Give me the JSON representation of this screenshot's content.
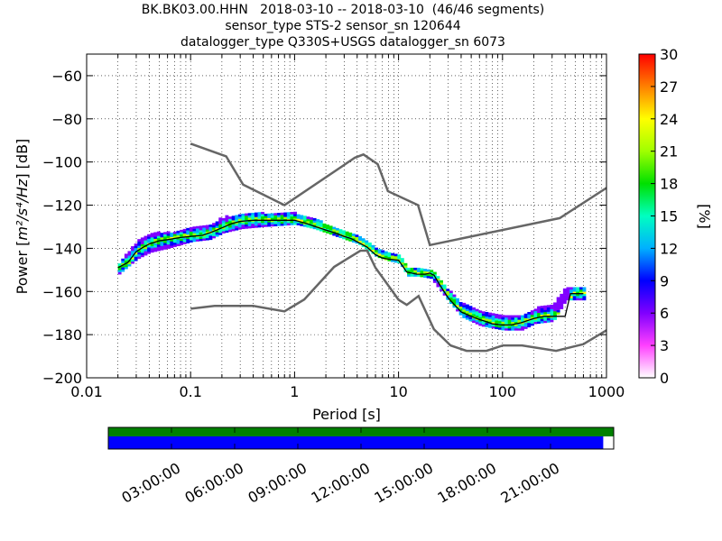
{
  "title_lines": [
    "BK.BK03.00.HHN   2018-03-10 -- 2018-03-10  (46/46 segments)",
    "sensor_type STS-2 sensor_sn 120644",
    "datalogger_type Q330S+USGS datalogger_sn 6073"
  ],
  "xlabel": "Period [s]",
  "ylabel_prefix": "Power [",
  "ylabel_math": "m²/s⁴/Hz",
  "ylabel_suffix": "] [dB]",
  "colorbar_label": "[%]",
  "colors": {
    "model_lines": "#666666",
    "coverage_bar": "#008000",
    "segment_bar": "#0000ff",
    "mean_line": "#000000"
  },
  "chart_data": {
    "type": "heatmap",
    "xscale": "log",
    "xlim": [
      0.01,
      1000
    ],
    "ylim": [
      -200,
      -50
    ],
    "x_ticks": [
      0.01,
      0.1,
      1,
      10,
      100,
      1000
    ],
    "x_tick_labels": [
      "0.01",
      "0.1",
      "1",
      "10",
      "100",
      "1000"
    ],
    "y_ticks": [
      -200,
      -180,
      -160,
      -140,
      -120,
      -100,
      -80,
      -60
    ],
    "y_tick_labels": [
      "−200",
      "−180",
      "−160",
      "−140",
      "−120",
      "−100",
      "−80",
      "−60"
    ],
    "grid": true,
    "colorbar": {
      "range": [
        0,
        30
      ],
      "ticks": [
        0,
        3,
        6,
        9,
        12,
        15,
        18,
        21,
        24,
        27,
        30
      ],
      "tick_labels": [
        "0",
        "3",
        "6",
        "9",
        "12",
        "15",
        "18",
        "21",
        "24",
        "27",
        "30"
      ]
    },
    "noise_models": [
      {
        "periods": [
          0.1,
          0.22,
          0.32,
          0.8,
          3.8,
          4.6,
          6.3,
          7.9,
          15.4,
          20,
          354.8,
          1000
        ],
        "values": [
          -91.5,
          -97.4,
          -110.5,
          -120,
          -98,
          -96.5,
          -101,
          -113.5,
          -120,
          -138.5,
          -126,
          -112
        ]
      },
      {
        "periods": [
          0.1,
          0.17,
          0.4,
          0.8,
          1.24,
          2.4,
          4.3,
          5,
          6,
          10,
          12,
          15.6,
          21.9,
          31.6,
          45,
          70,
          101,
          154,
          328,
          600,
          1000
        ],
        "values": [
          -168,
          -166.7,
          -166.7,
          -169.2,
          -163.7,
          -148.6,
          -141.1,
          -141.1,
          -149,
          -163.8,
          -166.2,
          -162.1,
          -177.5,
          -185,
          -187.5,
          -187.5,
          -185,
          -185,
          -187.5,
          -184.4,
          -178
        ]
      }
    ],
    "mean_curve": {
      "periods": [
        0.02,
        0.025,
        0.03,
        0.035,
        0.04,
        0.05,
        0.06,
        0.08,
        0.1,
        0.13,
        0.16,
        0.2,
        0.25,
        0.3,
        0.4,
        0.5,
        0.7,
        1,
        1.3,
        1.6,
        2,
        2.5,
        3,
        3.5,
        4,
        5,
        6,
        7,
        8,
        10,
        12,
        15,
        18,
        20,
        22,
        25,
        30,
        35,
        40,
        50,
        60,
        70,
        80,
        100,
        120,
        150,
        200,
        250,
        300,
        350,
        400,
        450,
        500,
        600
      ],
      "values": [
        -149,
        -146.5,
        -141.5,
        -139.5,
        -138,
        -136.5,
        -136,
        -135,
        -134.5,
        -134,
        -132.5,
        -130.5,
        -128.5,
        -127.5,
        -127,
        -127,
        -127,
        -127,
        -128.5,
        -130,
        -131.5,
        -133,
        -134.5,
        -135.5,
        -137,
        -139.5,
        -143,
        -144.5,
        -145,
        -145.5,
        -151,
        -152,
        -152,
        -151.5,
        -152.5,
        -157,
        -163,
        -166.5,
        -169.5,
        -171.5,
        -173,
        -174,
        -175,
        -175.5,
        -175.5,
        -174.5,
        -172.5,
        -171.5,
        -171.5,
        -171.5,
        -171.5,
        -161,
        -161,
        -161
      ]
    },
    "density_band": [
      {
        "period": 0.02,
        "low": -152,
        "high": -147
      },
      {
        "period": 0.03,
        "low": -145,
        "high": -137
      },
      {
        "period": 0.04,
        "low": -142,
        "high": -133
      },
      {
        "period": 0.06,
        "low": -140,
        "high": -133
      },
      {
        "period": 0.1,
        "low": -137,
        "high": -131
      },
      {
        "period": 0.15,
        "low": -136,
        "high": -129
      },
      {
        "period": 0.2,
        "low": -133,
        "high": -126
      },
      {
        "period": 0.3,
        "low": -131,
        "high": -124
      },
      {
        "period": 0.5,
        "low": -130,
        "high": -124
      },
      {
        "period": 1,
        "low": -129,
        "high": -124
      },
      {
        "period": 1.5,
        "low": -131,
        "high": -127
      },
      {
        "period": 2,
        "low": -133,
        "high": -129
      },
      {
        "period": 3,
        "low": -136,
        "high": -132
      },
      {
        "period": 4,
        "low": -138,
        "high": -134
      },
      {
        "period": 5,
        "low": -141,
        "high": -137
      },
      {
        "period": 6,
        "low": -144,
        "high": -140
      },
      {
        "period": 8,
        "low": -146,
        "high": -143
      },
      {
        "period": 10,
        "low": -147,
        "high": -143
      },
      {
        "period": 12,
        "low": -153,
        "high": -149
      },
      {
        "period": 15,
        "low": -153,
        "high": -150
      },
      {
        "period": 20,
        "low": -154,
        "high": -150
      },
      {
        "period": 25,
        "low": -160,
        "high": -155
      },
      {
        "period": 30,
        "low": -165,
        "high": -160
      },
      {
        "period": 40,
        "low": -172,
        "high": -166
      },
      {
        "period": 60,
        "low": -176,
        "high": -169
      },
      {
        "period": 100,
        "low": -178,
        "high": -171
      },
      {
        "period": 150,
        "low": -178,
        "high": -171
      },
      {
        "period": 200,
        "low": -175,
        "high": -168
      },
      {
        "period": 300,
        "low": -174,
        "high": -166
      },
      {
        "period": 400,
        "low": -164,
        "high": -158
      },
      {
        "period": 600,
        "low": -164,
        "high": -158
      }
    ]
  },
  "timeline": {
    "tick_labels": [
      "03:00:00",
      "06:00:00",
      "09:00:00",
      "12:00:00",
      "15:00:00",
      "18:00:00",
      "21:00:00"
    ],
    "tick_hours": [
      3,
      6,
      9,
      12,
      15,
      18,
      21
    ],
    "range_hours": [
      0,
      24
    ],
    "data_coverage": 1.0,
    "segment_coverage": 0.9792
  }
}
